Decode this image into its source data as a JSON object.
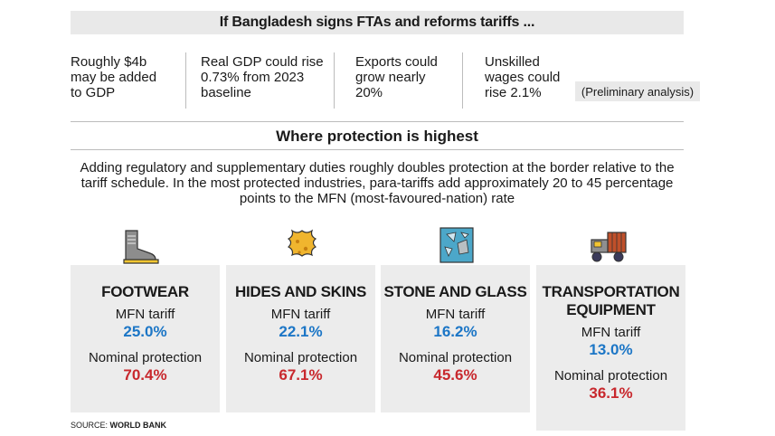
{
  "header": {
    "title": "If Bangladesh signs FTAs and reforms tariffs ..."
  },
  "stats": [
    {
      "text": "Roughly $4b\nmay be added\nto GDP"
    },
    {
      "text": "Real GDP could rise\n0.73% from 2023\nbaseline"
    },
    {
      "text": "Exports could\ngrow nearly\n20%"
    },
    {
      "text": "Unskilled\nwages could\nrise 2.1%"
    }
  ],
  "prelim": "(Preliminary analysis)",
  "section": {
    "title": "Where protection is highest",
    "description": "Adding regulatory and supplementary duties roughly doubles protection at the border relative to the tariff schedule. In the most protected industries, para-tariffs add approximately 20 to 45 percentage points to the MFN (most-favoured-nation) rate"
  },
  "labels": {
    "mfn": "MFN tariff",
    "nominal": "Nominal protection"
  },
  "cards": [
    {
      "name": "FOOTWEAR",
      "icon": "boot-icon",
      "mfn": "25.0%",
      "nominal": "70.4%"
    },
    {
      "name": "HIDES AND SKINS",
      "icon": "hide-icon",
      "mfn": "22.1%",
      "nominal": "67.1%"
    },
    {
      "name": "STONE AND GLASS",
      "icon": "stone-glass-icon",
      "mfn": "16.2%",
      "nominal": "45.6%"
    },
    {
      "name": "TRANSPORTATION\nEQUIPMENT",
      "icon": "truck-icon",
      "mfn": "13.0%",
      "nominal": "36.1%"
    }
  ],
  "source": {
    "prefix": "SOURCE: ",
    "name": "WORLD BANK"
  },
  "colors": {
    "mfn": "#1c76c6",
    "nominal": "#c8282d",
    "panel": "#ececec"
  }
}
